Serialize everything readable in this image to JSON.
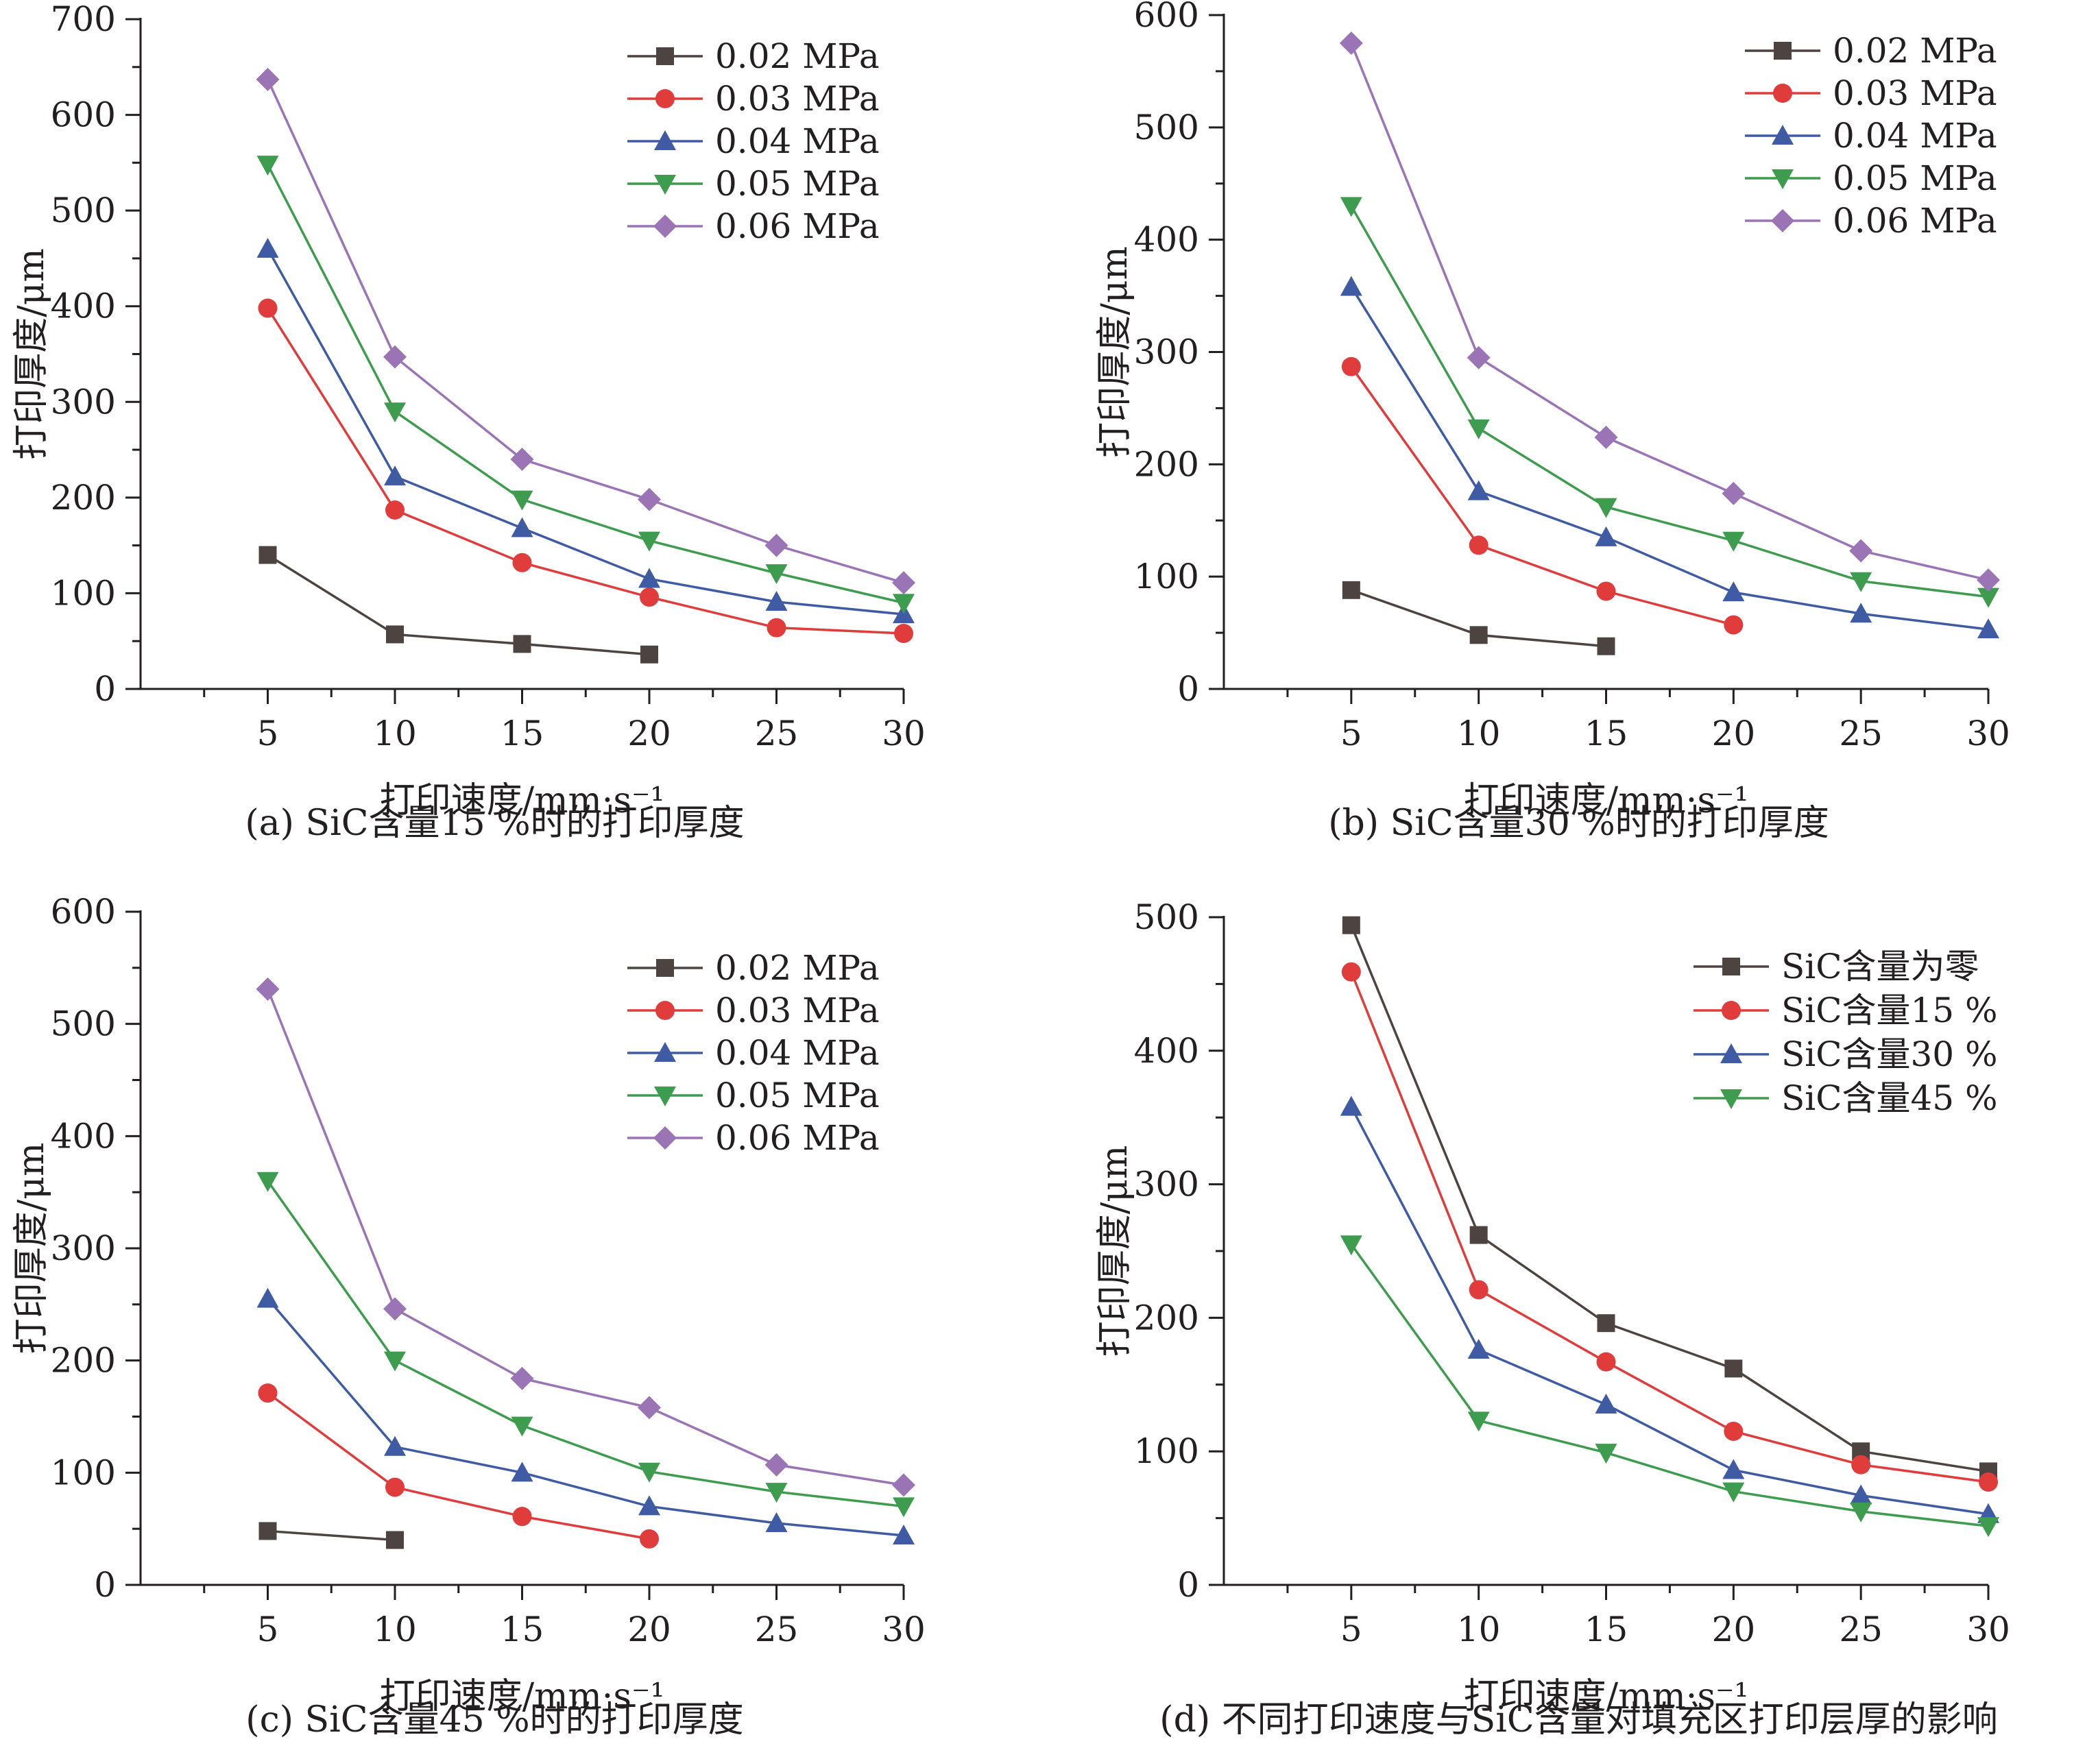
{
  "chart_data": [
    {
      "type": "line",
      "caption": "(a) SiC含量15 %时的打印厚度",
      "xlabel": "打印速度/mm·s⁻¹",
      "ylabel": "打印厚度/μm",
      "xlim": [
        0,
        30
      ],
      "ylim": [
        0,
        700
      ],
      "xticks": [
        5,
        10,
        15,
        20,
        25,
        30
      ],
      "yticks": [
        0,
        100,
        200,
        300,
        400,
        500,
        600,
        700
      ],
      "legend_position": "top-right",
      "series": [
        {
          "name": "0.02 MPa",
          "x": [
            5,
            10,
            15,
            20
          ],
          "values": [
            140,
            57,
            47,
            36
          ],
          "color": "#4d4442",
          "marker": "square"
        },
        {
          "name": "0.03 MPa",
          "x": [
            5,
            10,
            15,
            20,
            25,
            30
          ],
          "values": [
            398,
            187,
            132,
            96,
            64,
            58
          ],
          "color": "#e03c3c",
          "marker": "circle"
        },
        {
          "name": "0.04 MPa",
          "x": [
            5,
            10,
            15,
            20,
            25,
            30
          ],
          "values": [
            460,
            222,
            168,
            115,
            91,
            78
          ],
          "color": "#3f5ba3",
          "marker": "triangle-up"
        },
        {
          "name": "0.05 MPa",
          "x": [
            5,
            10,
            15,
            20,
            25,
            30
          ],
          "values": [
            548,
            290,
            198,
            155,
            121,
            90
          ],
          "color": "#3e9c4e",
          "marker": "triangle-down"
        },
        {
          "name": "0.06 MPa",
          "x": [
            5,
            10,
            15,
            20,
            25,
            30
          ],
          "values": [
            637,
            347,
            240,
            198,
            150,
            111
          ],
          "color": "#9a74b5",
          "marker": "diamond"
        }
      ]
    },
    {
      "type": "line",
      "caption": "(b) SiC含量30 %时的打印厚度",
      "xlabel": "打印速度/mm·s⁻¹",
      "ylabel": "打印厚度/μm",
      "xlim": [
        0,
        30
      ],
      "ylim": [
        0,
        600
      ],
      "xticks": [
        5,
        10,
        15,
        20,
        25,
        30
      ],
      "yticks": [
        0,
        100,
        200,
        300,
        400,
        500,
        600
      ],
      "legend_position": "top-right",
      "series": [
        {
          "name": "0.02 MPa",
          "x": [
            5,
            10,
            15
          ],
          "values": [
            88,
            48,
            38
          ],
          "color": "#4d4442",
          "marker": "square"
        },
        {
          "name": "0.03 MPa",
          "x": [
            5,
            10,
            15,
            20
          ],
          "values": [
            287,
            128,
            87,
            57
          ],
          "color": "#e03c3c",
          "marker": "circle"
        },
        {
          "name": "0.04 MPa",
          "x": [
            5,
            10,
            15,
            20,
            25,
            30
          ],
          "values": [
            358,
            176,
            135,
            86,
            67,
            53
          ],
          "color": "#3f5ba3",
          "marker": "triangle-up"
        },
        {
          "name": "0.05 MPa",
          "x": [
            5,
            10,
            15,
            20,
            25,
            30
          ],
          "values": [
            430,
            232,
            162,
            132,
            96,
            82
          ],
          "color": "#3e9c4e",
          "marker": "triangle-down"
        },
        {
          "name": "0.06 MPa",
          "x": [
            5,
            10,
            15,
            20,
            25,
            30
          ],
          "values": [
            575,
            295,
            224,
            174,
            123,
            97
          ],
          "color": "#9a74b5",
          "marker": "diamond"
        }
      ]
    },
    {
      "type": "line",
      "caption": "(c) SiC含量45 %时的打印厚度",
      "xlabel": "打印速度/mm·s⁻¹",
      "ylabel": "打印厚度/μm",
      "xlim": [
        0,
        30
      ],
      "ylim": [
        0,
        600
      ],
      "xticks": [
        5,
        10,
        15,
        20,
        25,
        30
      ],
      "yticks": [
        0,
        100,
        200,
        300,
        400,
        500,
        600
      ],
      "legend_position": "top-right",
      "series": [
        {
          "name": "0.02 MPa",
          "x": [
            5,
            10
          ],
          "values": [
            48,
            40
          ],
          "color": "#4d4442",
          "marker": "square"
        },
        {
          "name": "0.03 MPa",
          "x": [
            5,
            10,
            15,
            20
          ],
          "values": [
            171,
            87,
            61,
            41
          ],
          "color": "#e03c3c",
          "marker": "circle"
        },
        {
          "name": "0.04 MPa",
          "x": [
            5,
            10,
            15,
            20,
            25,
            30
          ],
          "values": [
            255,
            123,
            100,
            70,
            55,
            44
          ],
          "color": "#3f5ba3",
          "marker": "triangle-up"
        },
        {
          "name": "0.05 MPa",
          "x": [
            5,
            10,
            15,
            20,
            25,
            30
          ],
          "values": [
            360,
            200,
            142,
            101,
            83,
            70
          ],
          "color": "#3e9c4e",
          "marker": "triangle-down"
        },
        {
          "name": "0.06 MPa",
          "x": [
            5,
            10,
            15,
            20,
            25,
            30
          ],
          "values": [
            531,
            246,
            184,
            158,
            107,
            89
          ],
          "color": "#9a74b5",
          "marker": "diamond"
        }
      ]
    },
    {
      "type": "line",
      "caption": "(d) 不同打印速度与SiC含量对填充区打印层厚的影响",
      "xlabel": "打印速度/mm·s⁻¹",
      "ylabel": "打印厚度/μm",
      "xlim": [
        0,
        30
      ],
      "ylim": [
        0,
        500
      ],
      "xticks": [
        5,
        10,
        15,
        20,
        25,
        30
      ],
      "yticks": [
        0,
        100,
        200,
        300,
        400,
        500
      ],
      "legend_position": "top-right",
      "series": [
        {
          "name": "SiC含量为零",
          "x": [
            5,
            10,
            15,
            20,
            25,
            30
          ],
          "values": [
            494,
            262,
            196,
            162,
            100,
            85
          ],
          "color": "#4d4442",
          "marker": "square"
        },
        {
          "name": "SiC含量15 %",
          "x": [
            5,
            10,
            15,
            20,
            25,
            30
          ],
          "values": [
            459,
            221,
            167,
            115,
            90,
            77
          ],
          "color": "#e03c3c",
          "marker": "circle"
        },
        {
          "name": "SiC含量30 %",
          "x": [
            5,
            10,
            15,
            20,
            25,
            30
          ],
          "values": [
            358,
            176,
            135,
            86,
            67,
            53
          ],
          "color": "#3f5ba3",
          "marker": "triangle-up"
        },
        {
          "name": "SiC含量45 %",
          "x": [
            5,
            10,
            15,
            20,
            25,
            30
          ],
          "values": [
            255,
            123,
            99,
            70,
            55,
            44
          ],
          "color": "#3e9c4e",
          "marker": "triangle-down"
        }
      ]
    }
  ]
}
